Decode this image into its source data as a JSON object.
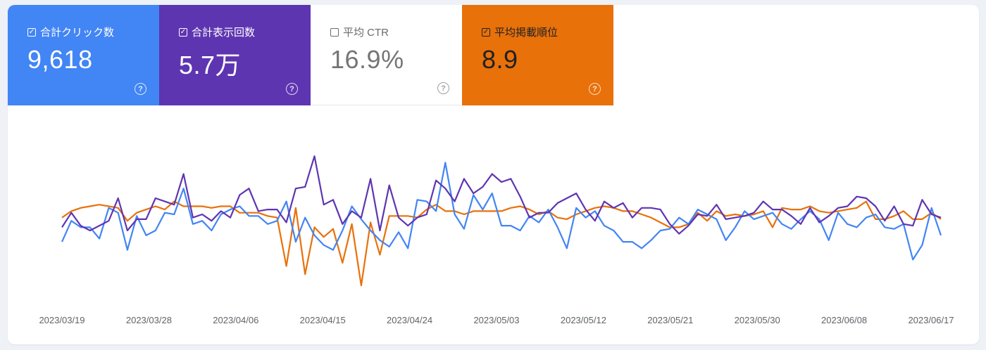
{
  "metrics": {
    "clicks": {
      "label": "合計クリック数",
      "value": "9,618",
      "checked": true,
      "color": "#4285f4"
    },
    "impressions": {
      "label": "合計表示回数",
      "value": "5.7万",
      "checked": true,
      "color": "#5e35b1"
    },
    "ctr": {
      "label": "平均 CTR",
      "value": "16.9%",
      "checked": false,
      "color": "#ffffff"
    },
    "position": {
      "label": "平均掲載順位",
      "value": "8.9",
      "checked": true,
      "color": "#e8710a"
    }
  },
  "help_glyph": "?",
  "chart_data": {
    "type": "line",
    "x_tick_labels": [
      "2023/03/19",
      "2023/03/28",
      "2023/04/06",
      "2023/04/15",
      "2023/04/24",
      "2023/05/03",
      "2023/05/12",
      "2023/05/21",
      "2023/05/30",
      "2023/06/08",
      "2023/06/17"
    ],
    "x_start": "2023/03/19",
    "x_end": "2023/06/17",
    "note_scale": "y values are relative levels (0 = bottom of plot, 1 = top); axes show no numeric tick labels",
    "series": [
      {
        "name": "合計クリック数",
        "color": "#4285f4",
        "values": [
          0.33,
          0.46,
          0.42,
          0.42,
          0.35,
          0.54,
          0.51,
          0.28,
          0.49,
          0.37,
          0.4,
          0.51,
          0.5,
          0.66,
          0.44,
          0.46,
          0.4,
          0.5,
          0.53,
          0.55,
          0.49,
          0.49,
          0.44,
          0.46,
          0.58,
          0.33,
          0.48,
          0.37,
          0.31,
          0.28,
          0.4,
          0.55,
          0.47,
          0.4,
          0.34,
          0.3,
          0.39,
          0.29,
          0.59,
          0.58,
          0.52,
          0.82,
          0.5,
          0.41,
          0.62,
          0.53,
          0.63,
          0.43,
          0.43,
          0.4,
          0.49,
          0.45,
          0.53,
          0.42,
          0.29,
          0.54,
          0.48,
          0.52,
          0.43,
          0.4,
          0.33,
          0.33,
          0.29,
          0.34,
          0.4,
          0.41,
          0.48,
          0.44,
          0.53,
          0.5,
          0.47,
          0.34,
          0.42,
          0.52,
          0.47,
          0.49,
          0.51,
          0.44,
          0.41,
          0.47,
          0.52,
          0.47,
          0.34,
          0.51,
          0.44,
          0.42,
          0.48,
          0.5,
          0.42,
          0.41,
          0.44,
          0.22,
          0.31,
          0.54,
          0.37
        ]
      },
      {
        "name": "合計表示回数",
        "color": "#5e35b1",
        "values": [
          0.42,
          0.51,
          0.43,
          0.4,
          0.43,
          0.46,
          0.6,
          0.4,
          0.47,
          0.47,
          0.6,
          0.58,
          0.56,
          0.75,
          0.48,
          0.5,
          0.46,
          0.52,
          0.48,
          0.62,
          0.66,
          0.52,
          0.53,
          0.53,
          0.45,
          0.66,
          0.67,
          0.86,
          0.56,
          0.59,
          0.44,
          0.52,
          0.48,
          0.72,
          0.4,
          0.68,
          0.48,
          0.43,
          0.48,
          0.5,
          0.71,
          0.66,
          0.58,
          0.72,
          0.63,
          0.67,
          0.75,
          0.7,
          0.72,
          0.61,
          0.48,
          0.51,
          0.51,
          0.57,
          0.6,
          0.63,
          0.53,
          0.46,
          0.58,
          0.54,
          0.57,
          0.48,
          0.54,
          0.54,
          0.53,
          0.44,
          0.38,
          0.43,
          0.5,
          0.49,
          0.56,
          0.47,
          0.48,
          0.49,
          0.51,
          0.58,
          0.53,
          0.53,
          0.49,
          0.44,
          0.54,
          0.45,
          0.49,
          0.54,
          0.55,
          0.61,
          0.6,
          0.55,
          0.46,
          0.55,
          0.44,
          0.43,
          0.59,
          0.5,
          0.48
        ]
      },
      {
        "name": "平均掲載順位",
        "color": "#e8710a",
        "values": [
          0.48,
          0.52,
          0.54,
          0.55,
          0.56,
          0.55,
          0.54,
          0.46,
          0.51,
          0.53,
          0.55,
          0.53,
          0.58,
          0.55,
          0.55,
          0.55,
          0.54,
          0.55,
          0.55,
          0.51,
          0.51,
          0.51,
          0.49,
          0.48,
          0.18,
          0.54,
          0.13,
          0.42,
          0.36,
          0.41,
          0.2,
          0.44,
          0.06,
          0.45,
          0.25,
          0.49,
          0.49,
          0.49,
          0.48,
          0.53,
          0.56,
          0.52,
          0.52,
          0.5,
          0.52,
          0.52,
          0.52,
          0.52,
          0.54,
          0.55,
          0.53,
          0.5,
          0.52,
          0.48,
          0.47,
          0.5,
          0.52,
          0.54,
          0.55,
          0.54,
          0.52,
          0.52,
          0.5,
          0.48,
          0.45,
          0.42,
          0.42,
          0.44,
          0.51,
          0.46,
          0.52,
          0.49,
          0.5,
          0.49,
          0.5,
          0.52,
          0.42,
          0.54,
          0.53,
          0.53,
          0.55,
          0.52,
          0.51,
          0.52,
          0.53,
          0.54,
          0.58,
          0.47,
          0.47,
          0.49,
          0.52,
          0.47,
          0.47,
          0.51,
          0.47
        ]
      }
    ],
    "ylim": [
      0,
      1
    ],
    "grid": false,
    "legend": "none"
  }
}
